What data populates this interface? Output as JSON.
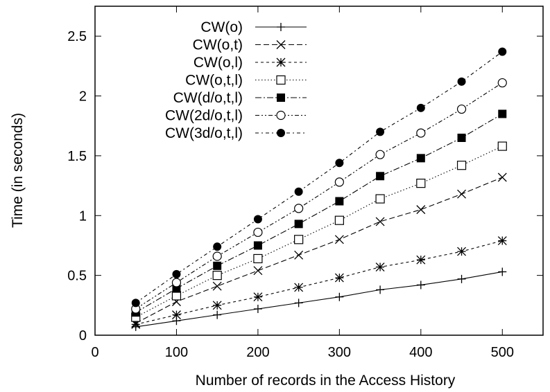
{
  "chart_data": {
    "type": "line",
    "xlabel": "Number of records in the Access History",
    "ylabel": "Time (in seconds)",
    "xlim": [
      0,
      550
    ],
    "ylim": [
      0,
      2.75
    ],
    "x_ticks": [
      "0",
      "100",
      "200",
      "300",
      "400",
      "500"
    ],
    "y_ticks": [
      "0",
      "0.5",
      "1",
      "1.5",
      "2",
      "2.5"
    ],
    "grid": false,
    "legend_position": "top-left",
    "x": [
      50,
      100,
      150,
      200,
      250,
      300,
      350,
      400,
      450,
      500
    ],
    "series": [
      {
        "name": "CW(o)",
        "marker": "plus",
        "dash": "solid",
        "values": [
          0.07,
          0.12,
          0.17,
          0.22,
          0.27,
          0.32,
          0.38,
          0.42,
          0.47,
          0.53
        ]
      },
      {
        "name": "CW(o,t)",
        "marker": "cross",
        "dash": "long-dash",
        "values": [
          0.1,
          0.28,
          0.41,
          0.54,
          0.67,
          0.8,
          0.95,
          1.05,
          1.18,
          1.32
        ]
      },
      {
        "name": "CW(o,l)",
        "marker": "star",
        "dash": "short-dash",
        "values": [
          0.09,
          0.17,
          0.25,
          0.32,
          0.4,
          0.48,
          0.57,
          0.63,
          0.7,
          0.79
        ]
      },
      {
        "name": "CW(o,t,l)",
        "marker": "open-square",
        "dash": "dotted",
        "values": [
          0.15,
          0.33,
          0.5,
          0.64,
          0.8,
          0.96,
          1.14,
          1.27,
          1.42,
          1.58
        ]
      },
      {
        "name": "CW(d/o,t,l)",
        "marker": "filled-square",
        "dash": "dash-dot",
        "values": [
          0.19,
          0.39,
          0.58,
          0.75,
          0.93,
          1.12,
          1.33,
          1.48,
          1.65,
          1.85
        ]
      },
      {
        "name": "CW(2d/o,t,l)",
        "marker": "open-circle",
        "dash": "dash-dot-dot",
        "values": [
          0.22,
          0.44,
          0.66,
          0.86,
          1.06,
          1.28,
          1.51,
          1.69,
          1.89,
          2.11
        ]
      },
      {
        "name": "CW(3d/o,t,l)",
        "marker": "filled-circle",
        "dash": "dash-dot-2",
        "values": [
          0.27,
          0.51,
          0.74,
          0.97,
          1.2,
          1.44,
          1.7,
          1.9,
          2.12,
          2.37
        ]
      }
    ]
  }
}
